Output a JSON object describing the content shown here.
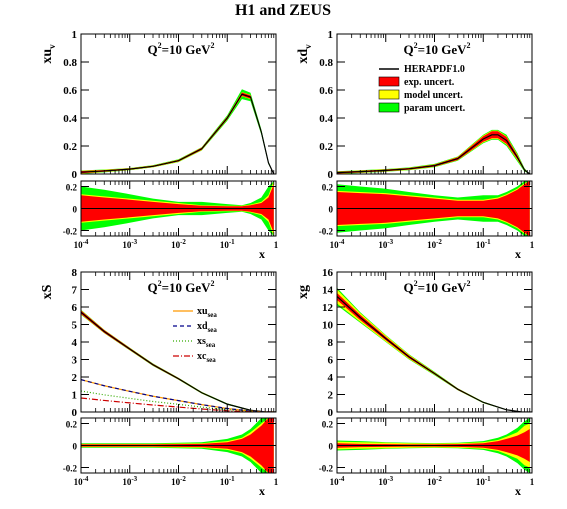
{
  "figure_title": "H1 and ZEUS",
  "colors": {
    "exp": "#ff0000",
    "model": "#ffff00",
    "param": "#00ff00",
    "central": "#000000",
    "xu_sea": "#ff9900",
    "xd_sea": "#00008b",
    "xs_sea": "#33aa00",
    "xc_sea": "#cc0000"
  },
  "chart_data": [
    {
      "type": "area",
      "panel": "top-left",
      "ylabel": "xu",
      "ylabel_sub": "v",
      "annotation": {
        "q": "Q",
        "sup": "2",
        "eq": "=10 GeV",
        "sup2": "2"
      },
      "xscale": "log",
      "xlim": [
        0.0001,
        1
      ],
      "ylim": [
        0,
        1
      ],
      "yticks": [
        "0",
        "0.2",
        "0.4",
        "0.6",
        "0.8",
        "1"
      ],
      "x": [
        0.0001,
        0.0003,
        0.001,
        0.003,
        0.01,
        0.03,
        0.1,
        0.2,
        0.3,
        0.5,
        0.7,
        0.9
      ],
      "central": [
        0.013,
        0.022,
        0.035,
        0.055,
        0.095,
        0.18,
        0.4,
        0.57,
        0.55,
        0.3,
        0.08,
        0.0
      ],
      "exp_band": [
        0.008,
        0.006,
        0.005,
        0.005,
        0.006,
        0.008,
        0.01,
        0.012,
        0.012,
        0.01,
        0.005,
        0.0
      ],
      "model_band": [
        0.01,
        0.008,
        0.007,
        0.007,
        0.008,
        0.01,
        0.012,
        0.015,
        0.015,
        0.012,
        0.006,
        0.0
      ],
      "param_band": [
        0.012,
        0.01,
        0.008,
        0.008,
        0.01,
        0.012,
        0.02,
        0.035,
        0.03,
        0.02,
        0.01,
        0.0
      ],
      "ratio": {
        "ylim": [
          -0.25,
          0.25
        ],
        "yticks": [
          "-0.2",
          "0",
          "0.2"
        ],
        "xlabel": "x",
        "xticks": [
          "10",
          "10",
          "10",
          "10",
          "1"
        ],
        "xtick_exps": [
          "-4",
          "-3",
          "-2",
          "-1",
          ""
        ],
        "x": [
          0.0001,
          0.0003,
          0.001,
          0.003,
          0.01,
          0.03,
          0.1,
          0.2,
          0.3,
          0.5,
          0.7,
          0.9
        ],
        "exp_band": [
          0.12,
          0.1,
          0.08,
          0.06,
          0.04,
          0.025,
          0.02,
          0.02,
          0.03,
          0.05,
          0.1,
          0.22
        ],
        "model_band": [
          0.13,
          0.11,
          0.09,
          0.07,
          0.05,
          0.03,
          0.025,
          0.025,
          0.035,
          0.06,
          0.12,
          0.25
        ],
        "param_band": [
          0.2,
          0.17,
          0.13,
          0.09,
          0.06,
          0.06,
          0.04,
          0.03,
          0.05,
          0.1,
          0.2,
          0.3
        ]
      }
    },
    {
      "type": "area",
      "panel": "top-right",
      "ylabel": "xd",
      "ylabel_sub": "v",
      "annotation": {
        "q": "Q",
        "sup": "2",
        "eq": "=10 GeV",
        "sup2": "2"
      },
      "xscale": "log",
      "xlim": [
        0.0001,
        1
      ],
      "ylim": [
        0,
        1
      ],
      "yticks": [
        "0",
        "0.2",
        "0.4",
        "0.6",
        "0.8",
        "1"
      ],
      "legend": [
        {
          "label": "HERAPDF1.0",
          "kind": "line",
          "color_key": "central"
        },
        {
          "label": "exp. uncert.",
          "kind": "box",
          "color_key": "exp"
        },
        {
          "label": "model uncert.",
          "kind": "box",
          "color_key": "model"
        },
        {
          "label": "param uncert.",
          "kind": "box",
          "color_key": "param"
        }
      ],
      "x": [
        0.0001,
        0.0003,
        0.001,
        0.003,
        0.01,
        0.03,
        0.1,
        0.15,
        0.2,
        0.3,
        0.5,
        0.7,
        0.9
      ],
      "central": [
        0.01,
        0.017,
        0.026,
        0.037,
        0.06,
        0.11,
        0.25,
        0.28,
        0.28,
        0.24,
        0.12,
        0.03,
        0.0
      ],
      "exp_band": [
        0.006,
        0.006,
        0.006,
        0.006,
        0.007,
        0.01,
        0.02,
        0.025,
        0.025,
        0.025,
        0.015,
        0.006,
        0.0
      ],
      "model_band": [
        0.008,
        0.008,
        0.008,
        0.008,
        0.009,
        0.012,
        0.025,
        0.03,
        0.03,
        0.03,
        0.02,
        0.008,
        0.0
      ],
      "param_band": [
        0.01,
        0.01,
        0.01,
        0.01,
        0.012,
        0.015,
        0.03,
        0.035,
        0.035,
        0.04,
        0.03,
        0.012,
        0.0
      ],
      "ratio": {
        "ylim": [
          -0.25,
          0.25
        ],
        "yticks": [
          "-0.2",
          "0",
          "0.2"
        ],
        "xlabel": "x",
        "xticks": [
          "10",
          "10",
          "10",
          "10",
          "1"
        ],
        "xtick_exps": [
          "-4",
          "-3",
          "-2",
          "-1",
          ""
        ],
        "x": [
          0.0001,
          0.0003,
          0.001,
          0.003,
          0.01,
          0.03,
          0.1,
          0.2,
          0.3,
          0.5,
          0.7,
          0.9
        ],
        "exp_band": [
          0.15,
          0.14,
          0.13,
          0.11,
          0.09,
          0.07,
          0.07,
          0.09,
          0.12,
          0.17,
          0.22,
          0.25
        ],
        "model_band": [
          0.16,
          0.15,
          0.14,
          0.12,
          0.1,
          0.08,
          0.08,
          0.1,
          0.13,
          0.18,
          0.23,
          0.25
        ],
        "param_band": [
          0.22,
          0.2,
          0.18,
          0.15,
          0.12,
          0.1,
          0.12,
          0.12,
          0.15,
          0.2,
          0.25,
          0.25
        ]
      }
    },
    {
      "type": "line",
      "panel": "bottom-left",
      "ylabel": "xS",
      "ylabel_sub": "",
      "annotation": {
        "q": "Q",
        "sup": "2",
        "eq": "=10 GeV",
        "sup2": "2"
      },
      "xscale": "log",
      "xlim": [
        0.0001,
        1
      ],
      "ylim": [
        0,
        8
      ],
      "yticks": [
        "0",
        "1",
        "2",
        "3",
        "4",
        "5",
        "6",
        "7",
        "8"
      ],
      "legend": [
        {
          "label": "xu",
          "sub": "sea",
          "dash": "",
          "color_key": "xu_sea"
        },
        {
          "label": "xd",
          "sub": "sea",
          "dash": "4,3",
          "color_key": "xd_sea"
        },
        {
          "label": "xs",
          "sub": "sea",
          "dash": "1,2",
          "color_key": "xs_sea"
        },
        {
          "label": "xc",
          "sub": "sea",
          "dash": "6,2,1,2",
          "color_key": "xc_sea"
        }
      ],
      "x": [
        0.0001,
        0.0003,
        0.001,
        0.003,
        0.01,
        0.03,
        0.1,
        0.3,
        0.6,
        1.0
      ],
      "central": [
        5.7,
        4.6,
        3.6,
        2.7,
        1.9,
        1.1,
        0.45,
        0.1,
        0.01,
        0.0
      ],
      "exp_band": [
        0.1,
        0.08,
        0.06,
        0.05,
        0.04,
        0.03,
        0.02,
        0.01,
        0.01,
        0.0
      ],
      "model_band": [
        0.12,
        0.09,
        0.07,
        0.06,
        0.05,
        0.04,
        0.03,
        0.02,
        0.01,
        0.0
      ],
      "param_band": [
        0.14,
        0.1,
        0.08,
        0.07,
        0.06,
        0.05,
        0.04,
        0.03,
        0.01,
        0.0
      ],
      "series": [
        {
          "name_key": "xu_sea",
          "values": [
            1.85,
            1.5,
            1.18,
            0.9,
            0.65,
            0.42,
            0.2,
            0.05,
            0.01,
            0.0
          ]
        },
        {
          "name_key": "xd_sea",
          "values": [
            1.85,
            1.5,
            1.18,
            0.9,
            0.65,
            0.42,
            0.2,
            0.05,
            0.01,
            0.0
          ]
        },
        {
          "name_key": "xs_sea",
          "values": [
            1.2,
            0.98,
            0.78,
            0.6,
            0.44,
            0.28,
            0.13,
            0.03,
            0.005,
            0.0
          ]
        },
        {
          "name_key": "xc_sea",
          "values": [
            0.8,
            0.66,
            0.52,
            0.4,
            0.28,
            0.17,
            0.07,
            0.01,
            0.0,
            0.0
          ]
        }
      ],
      "ratio": {
        "ylim": [
          -0.25,
          0.25
        ],
        "yticks": [
          "-0.2",
          "0",
          "0.2"
        ],
        "xlabel": "x",
        "xticks": [
          "10",
          "10",
          "10",
          "10",
          "1"
        ],
        "xtick_exps": [
          "-4",
          "-3",
          "-2",
          "-1",
          ""
        ],
        "x": [
          0.0001,
          0.0003,
          0.001,
          0.003,
          0.01,
          0.03,
          0.1,
          0.2,
          0.3,
          0.5,
          0.7,
          0.9
        ],
        "exp_band": [
          0.01,
          0.01,
          0.01,
          0.01,
          0.012,
          0.015,
          0.03,
          0.06,
          0.1,
          0.18,
          0.25,
          0.25
        ],
        "model_band": [
          0.015,
          0.015,
          0.015,
          0.015,
          0.018,
          0.02,
          0.04,
          0.07,
          0.12,
          0.2,
          0.25,
          0.25
        ],
        "param_band": [
          0.02,
          0.02,
          0.02,
          0.02,
          0.025,
          0.03,
          0.06,
          0.1,
          0.15,
          0.25,
          0.25,
          0.25
        ]
      }
    },
    {
      "type": "area",
      "panel": "bottom-right",
      "ylabel": "xg",
      "ylabel_sub": "",
      "annotation": {
        "q": "Q",
        "sup": "2",
        "eq": "=10 GeV",
        "sup2": "2"
      },
      "xscale": "log",
      "xlim": [
        0.0001,
        1
      ],
      "ylim": [
        0,
        16
      ],
      "yticks": [
        "0",
        "2",
        "4",
        "6",
        "8",
        "10",
        "12",
        "14",
        "16"
      ],
      "x": [
        0.0001,
        0.0003,
        0.001,
        0.003,
        0.01,
        0.03,
        0.1,
        0.3,
        0.6,
        1.0
      ],
      "central": [
        13.2,
        10.8,
        8.4,
        6.3,
        4.4,
        2.6,
        1.1,
        0.25,
        0.02,
        0.0
      ],
      "exp_band": [
        0.4,
        0.3,
        0.2,
        0.15,
        0.1,
        0.08,
        0.05,
        0.03,
        0.01,
        0.0
      ],
      "model_band": [
        0.8,
        0.5,
        0.35,
        0.25,
        0.15,
        0.1,
        0.07,
        0.04,
        0.01,
        0.0
      ],
      "param_band": [
        1.0,
        0.6,
        0.4,
        0.3,
        0.2,
        0.12,
        0.08,
        0.05,
        0.02,
        0.0
      ],
      "ratio": {
        "ylim": [
          -0.25,
          0.25
        ],
        "yticks": [
          "-0.2",
          "0",
          "0.2"
        ],
        "xlabel": "x",
        "xticks": [
          "10",
          "10",
          "10",
          "10",
          "1"
        ],
        "xtick_exps": [
          "-4",
          "-3",
          "-2",
          "-1",
          ""
        ],
        "x": [
          0.0001,
          0.0003,
          0.001,
          0.003,
          0.01,
          0.03,
          0.1,
          0.2,
          0.3,
          0.5,
          0.7,
          0.9
        ],
        "exp_band": [
          0.02,
          0.015,
          0.012,
          0.01,
          0.01,
          0.012,
          0.02,
          0.04,
          0.06,
          0.09,
          0.12,
          0.15
        ],
        "model_band": [
          0.035,
          0.03,
          0.025,
          0.02,
          0.018,
          0.02,
          0.03,
          0.05,
          0.08,
          0.12,
          0.18,
          0.2
        ],
        "param_band": [
          0.045,
          0.04,
          0.03,
          0.025,
          0.022,
          0.025,
          0.04,
          0.07,
          0.1,
          0.16,
          0.22,
          0.25
        ]
      }
    }
  ]
}
